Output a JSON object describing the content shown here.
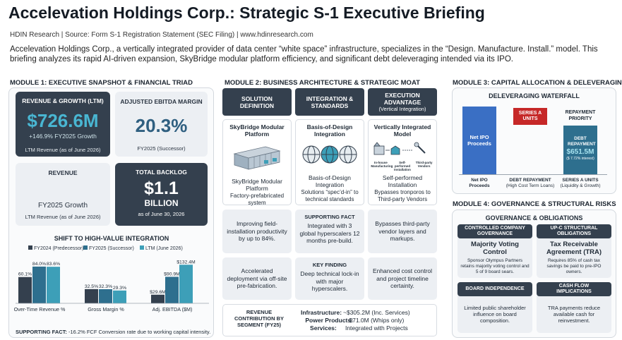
{
  "header": {
    "title": "Accelevation Holdings Corp.: Strategic S-1 Executive Briefing",
    "subtitle": "HDIN Research | Source: Form S-1 Registration Statement (SEC Filing) | www.hdinresearch.com",
    "description": "Accelevation Holdings Corp., a vertically integrated provider of data center “white space” infrastructure, specializes in the “Design. Manufacture. Install.” model. This briefing analyzes its rapid AI-driven expansion, SkyBridge modular platform efficiency, and significant debt deleveraging intended via its IPO."
  },
  "module1": {
    "title": "MODULE 1: EXECUTIVE SNAPSHOT & FINANCIAL TRIAD",
    "rev_growth": {
      "title": "REVENUE & GROWTH (LTM)",
      "value": "$726.6M",
      "growth": "+146.9% FY2025 Growth",
      "note": "LTM Revenue (as of June 2026)"
    },
    "ebitda": {
      "title": "ADJUSTED EBITDA MARGIN",
      "value": "20.3%",
      "note": "FY2025 (Successor)"
    },
    "revenue": {
      "title": "REVENUE",
      "growth": "FY2025 Growth",
      "note": "LTM Revenue (as of June 2026)"
    },
    "backlog": {
      "title": "TOTAL BACKLOG",
      "value": "$1.1",
      "unit": "BILLION",
      "note": "as of June 30, 2026"
    },
    "chart_title": "SHIFT TO HIGH-VALUE INTEGRATION",
    "footer_label": "SUPPORTING FACT:",
    "footer_text": " -16.2% FCF Conversion rate due to working capital intensity."
  },
  "chart_data": {
    "type": "bar",
    "title": "SHIFT TO HIGH-VALUE INTEGRATION",
    "categories": [
      "Over-Time Revenue %",
      "Gross Margin %",
      "Adj. EBITDA ($M)"
    ],
    "series": [
      {
        "name": "FY2024 (Predecessor)",
        "color": "#34404e",
        "values": [
          60.1,
          32.5,
          29.6
        ],
        "labels": [
          "60.1%",
          "32.5%",
          "$29.6M"
        ]
      },
      {
        "name": "FY2025 (Successor)",
        "color": "#2e6f8e",
        "values": [
          84.0,
          32.3,
          90.9
        ],
        "labels": [
          "84.0%",
          "32.3%",
          "$90.9M"
        ]
      },
      {
        "name": "LTM (June 2026)",
        "color": "#3d9fb8",
        "values": [
          83.6,
          29.3,
          132.4
        ],
        "labels": [
          "83.6%",
          "29.3%",
          "$132.4M"
        ]
      }
    ],
    "group_max": [
      100,
      100,
      150
    ]
  },
  "module2": {
    "title": "MODULE 2: BUSINESS ARCHITECTURE & STRATEGIC MOAT",
    "headers": [
      {
        "line1": "SOLUTION",
        "line2": "DEFINITION",
        "line3": ""
      },
      {
        "line1": "INTEGRATION &",
        "line2": "STANDARDS",
        "line3": ""
      },
      {
        "line1": "EXECUTION",
        "line2": "ADVANTAGE",
        "line3": "(Vertical Integration)"
      }
    ],
    "columns": [
      {
        "title": "SkyBridge Modular Platform",
        "desc1": "SkyBridge Modular Platform",
        "desc2": "Factory-prefabricated system"
      },
      {
        "title": "Basis-of-Design Integration",
        "desc1": "Basis-of-Design Integration",
        "desc2": "Solutions “spec’d-in” to technical standards"
      },
      {
        "title": "Vertically Integrated Model",
        "desc1": "Self-performed Installation",
        "desc2": "Bypasses tronporos to Third-party Vendors"
      }
    ],
    "vi_icons": [
      "In-house Manufacturing",
      "Self-performed Installation",
      "Third-party Vendors"
    ],
    "facts_row1": [
      {
        "label": "",
        "text": "Improving field-installation productivity by up to 84%."
      },
      {
        "label": "SUPPORTING FACT",
        "text": "Integrated with 3 global hyperscalers 12 months pre-build."
      },
      {
        "label": "",
        "text": "Bypasses third-party vendor layers and markups."
      }
    ],
    "facts_row2": [
      {
        "label": "",
        "text": "Accelerated deployment via off-site pre-fabrication."
      },
      {
        "label": "KEY FINDING",
        "text": "Deep technical lock-in with major hyperscalers."
      },
      {
        "label": "",
        "text": "Enhanced cost control and project timeline certainty."
      }
    ],
    "segment_label": "REVENUE CONTRIBUTION BY SEGMENT (FY25)",
    "segments": [
      {
        "name": "Infrastructure:",
        "value": "~$305.2M (Inc. Services)"
      },
      {
        "name": "Power Products:",
        "value": "$71.0M (Whips only)"
      },
      {
        "name": "Services:",
        "value": "Integrated with Projects"
      }
    ]
  },
  "module3": {
    "title": "MODULE 3: CAPITAL ALLOCATION & DELEVERAGING",
    "waterfall_title": "DELEVERAGING WATERFALL",
    "bars": {
      "ipo": "Net IPO Proceeds",
      "series_a": "SERIES A UNITS",
      "priority": "REPAYMENT PRIORITY",
      "debt_label": "DEBT REPAYMENT",
      "debt_value": "$651.5M",
      "debt_note": "($ 7.72% interest)"
    },
    "axis": [
      {
        "line1": "Net IPO",
        "line2": "Proceeds"
      },
      {
        "line1": "DEBT REPAYMENT",
        "line2": "(High Cost Term Loans)"
      },
      {
        "line1": "SERIES A UNITS",
        "line2": "(Liquidity & Growth)"
      }
    ]
  },
  "module4": {
    "title": "MODULE 4: GOVERNANCE & STRUCTURAL RISKS",
    "panel_title": "GOVERNANCE & OBLIGATIONS",
    "items": [
      {
        "head1": "CONTROLLED COMPANY",
        "head2": "GOVERNANCE",
        "title": "Majority Voting Control",
        "text": "Sponsor Olympus Partners retains majority voting control and 5 of 9 board sears."
      },
      {
        "head1": "UP-C STRUCTURAL",
        "head2": "OBLIGATIONS",
        "title": "Tax Receivable Agreement (TRA)",
        "text": "Requires 85% of cash tax savings be paid to pre-IPO owners."
      },
      {
        "head1": "BOARD INDEPENDENCE",
        "head2": "",
        "title": "",
        "text": "Limited public shareholder influence on board composition."
      },
      {
        "head1": "CASH FLOW",
        "head2": "IMPLICATIONS",
        "title": "",
        "text": "TRA payments reduce available cash for reinvestment."
      }
    ]
  }
}
